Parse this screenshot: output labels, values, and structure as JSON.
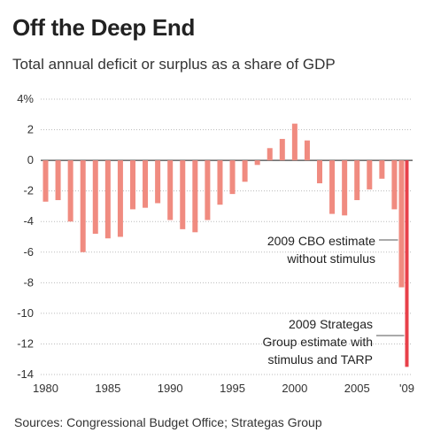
{
  "header": {
    "title": "Off the Deep End",
    "subtitle": "Total annual deficit or surplus as a share of GDP"
  },
  "footer": {
    "source": "Sources: Congressional Budget Office; Strategas Group"
  },
  "colors": {
    "bar": "#f08b80",
    "highlight_bar": "#e8404a",
    "grid": "#bbbbbb",
    "zero_line": "#444444"
  },
  "chart_data": {
    "type": "bar",
    "title": "Off the Deep End",
    "subtitle": "Total annual deficit or surplus as a share of GDP",
    "xlabel": "",
    "ylabel": "",
    "ylim": [
      -14,
      4
    ],
    "yticks": [
      4,
      2,
      0,
      -2,
      -4,
      -6,
      -8,
      -10,
      -12,
      -14
    ],
    "ytick_labels": [
      "4%",
      "2",
      "0",
      "-2",
      "-4",
      "-6",
      "-8",
      "-10",
      "-12",
      "-14"
    ],
    "xtick_labels": [
      {
        "year": 1980,
        "label": "1980"
      },
      {
        "year": 1985,
        "label": "1985"
      },
      {
        "year": 1990,
        "label": "1990"
      },
      {
        "year": 1995,
        "label": "1995"
      },
      {
        "year": 2000,
        "label": "2000"
      },
      {
        "year": 2005,
        "label": "2005"
      },
      {
        "year": 2009,
        "label": "'09"
      }
    ],
    "grid": true,
    "categories": [
      1980,
      1981,
      1982,
      1983,
      1984,
      1985,
      1986,
      1987,
      1988,
      1989,
      1990,
      1991,
      1992,
      1993,
      1994,
      1995,
      1996,
      1997,
      1998,
      1999,
      2000,
      2001,
      2002,
      2003,
      2004,
      2005,
      2006,
      2007,
      2008
    ],
    "values": [
      -2.7,
      -2.6,
      -4.0,
      -6.0,
      -4.8,
      -5.1,
      -5.0,
      -3.2,
      -3.1,
      -2.8,
      -3.9,
      -4.5,
      -4.7,
      -3.9,
      -2.9,
      -2.2,
      -1.4,
      -0.3,
      0.8,
      1.4,
      2.4,
      1.3,
      -1.5,
      -3.5,
      -3.6,
      -2.6,
      -1.9,
      -1.2,
      -3.2
    ],
    "special_bars": [
      {
        "year": 2009,
        "value": -8.3,
        "label": "2009 CBO estimate without stimulus",
        "label_lines": [
          "2009 CBO estimate",
          "without stimulus"
        ]
      },
      {
        "year": 2009,
        "value": -13.5,
        "label": "2009 Strategas Group estimate with stimulus and TARP",
        "label_lines": [
          "2009 Strategas",
          "Group estimate with",
          "stimulus and TARP"
        ]
      }
    ]
  }
}
